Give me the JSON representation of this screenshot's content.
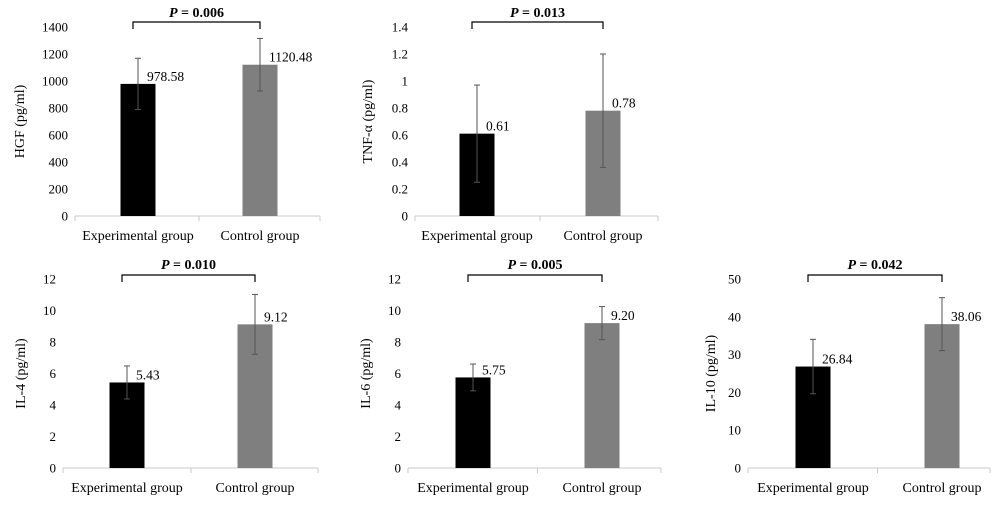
{
  "colors": {
    "experimental": "#000000",
    "control": "#7f7f7f"
  },
  "chart_data": [
    {
      "type": "bar",
      "categories": [
        "Experimental group",
        "Control group"
      ],
      "values": [
        978.58,
        1120.48
      ],
      "value_labels": [
        "978.58",
        "1120.48"
      ],
      "error": [
        190,
        195
      ],
      "ylabel": "HGF (pg/ml)",
      "ylim": [
        0,
        1400
      ],
      "yticks": [
        0,
        200,
        400,
        600,
        800,
        1000,
        1200,
        1400
      ],
      "ytick_labels": [
        "0",
        "200",
        "400",
        "600",
        "800",
        "1000",
        "1200",
        "1400"
      ],
      "p_label": "P = 0.006",
      "p_italic": "P",
      "p_rest": " = 0.006",
      "grid": false
    },
    {
      "type": "bar",
      "categories": [
        "Experimental group",
        "Control group"
      ],
      "values": [
        0.61,
        0.78
      ],
      "value_labels": [
        "0.61",
        "0.78"
      ],
      "error": [
        0.36,
        0.42
      ],
      "ylabel": "TNF-α (pg/ml)",
      "ylim": [
        0,
        1.4
      ],
      "yticks": [
        0,
        0.2,
        0.4,
        0.6,
        0.8,
        1.0,
        1.2,
        1.4
      ],
      "ytick_labels": [
        "0",
        "0.2",
        "0.4",
        "0.6",
        "0.8",
        "1",
        "1.2",
        "1.4"
      ],
      "p_label": "P = 0.013",
      "p_italic": "P",
      "p_rest": " = 0.013",
      "grid": false
    },
    {
      "type": "bar",
      "categories": [
        "Experimental group",
        "Control group"
      ],
      "values": [
        5.43,
        9.12
      ],
      "value_labels": [
        "5.43",
        "9.12"
      ],
      "error": [
        1.05,
        1.9
      ],
      "ylabel": "IL-4 (pg/ml)",
      "ylim": [
        0,
        12
      ],
      "yticks": [
        0,
        2,
        4,
        6,
        8,
        10,
        12
      ],
      "ytick_labels": [
        "0",
        "2",
        "4",
        "6",
        "8",
        "10",
        "12"
      ],
      "p_label": "P = 0.010",
      "p_italic": "P",
      "p_rest": " = 0.010",
      "grid": false
    },
    {
      "type": "bar",
      "categories": [
        "Experimental group",
        "Control group"
      ],
      "values": [
        5.75,
        9.2
      ],
      "value_labels": [
        "5.75",
        "9.20"
      ],
      "error": [
        0.85,
        1.05
      ],
      "ylabel": "IL-6 (pg/ml)",
      "ylim": [
        0,
        12
      ],
      "yticks": [
        0,
        2,
        4,
        6,
        8,
        10,
        12
      ],
      "ytick_labels": [
        "0",
        "2",
        "4",
        "6",
        "8",
        "10",
        "12"
      ],
      "p_label": "P = 0.005",
      "p_italic": "P",
      "p_rest": " = 0.005",
      "grid": false
    },
    {
      "type": "bar",
      "categories": [
        "Experimental group",
        "Control group"
      ],
      "values": [
        26.84,
        38.06
      ],
      "value_labels": [
        "26.84",
        "38.06"
      ],
      "error": [
        7.2,
        7.0
      ],
      "ylabel": "IL-10 (pg/ml)",
      "ylim": [
        0,
        50
      ],
      "yticks": [
        0,
        10,
        20,
        30,
        40,
        50
      ],
      "ytick_labels": [
        "0",
        "10",
        "20",
        "30",
        "40",
        "50"
      ],
      "p_label": "P = 0.042",
      "p_italic": "P",
      "p_rest": " = 0.042",
      "grid": false
    }
  ]
}
